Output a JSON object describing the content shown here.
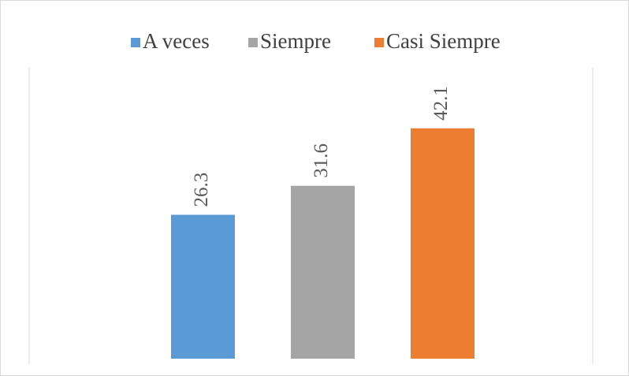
{
  "chart_data": {
    "type": "bar",
    "series": [
      {
        "name": "A veces",
        "color": "#5b9bd5",
        "values": [
          26.3
        ]
      },
      {
        "name": "Siempre",
        "color": "#a5a5a5",
        "values": [
          31.6
        ]
      },
      {
        "name": "Casi Siempre",
        "color": "#ed7d31",
        "values": [
          42.1
        ]
      }
    ],
    "ylim": [
      0,
      50
    ],
    "legend": "top"
  }
}
